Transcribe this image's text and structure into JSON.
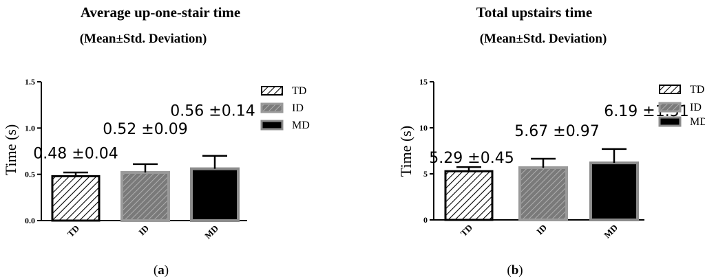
{
  "colors": {
    "axis": "#000000",
    "td_fill": "#ffffff",
    "td_stroke": "#000000",
    "id_fill": "#7a7a7a",
    "id_stroke": "#9a9a9a",
    "md_fill": "#000000",
    "md_stroke": "#8c8c8c"
  },
  "chart_data": [
    {
      "type": "bar",
      "title": "Average up-one-stair time",
      "subtitle": "(Mean±Std. Deviation)",
      "ylabel": "Time (s)",
      "xlabel": "",
      "ylim": [
        0,
        1.5
      ],
      "yticks": [
        "0.0",
        "0.5",
        "1.0",
        "1.5"
      ],
      "categories": [
        "TD",
        "ID",
        "MD"
      ],
      "values": [
        0.48,
        0.52,
        0.56
      ],
      "errors": [
        0.04,
        0.09,
        0.14
      ],
      "data_labels": [
        "0.48 ±0.04",
        "0.52 ±0.09",
        "0.56 ±0.14"
      ],
      "legend": [
        "TD",
        "ID",
        "MD"
      ],
      "legend_position": "top-right",
      "grid": false,
      "panel_label": "a"
    },
    {
      "type": "bar",
      "title": "Total upstairs time",
      "subtitle": "(Mean±Std. Deviation)",
      "ylabel": "Time (s)",
      "xlabel": "",
      "ylim": [
        0,
        15
      ],
      "yticks": [
        "0",
        "5",
        "10",
        "15"
      ],
      "categories": [
        "TD",
        "ID",
        "MD"
      ],
      "values": [
        5.29,
        5.67,
        6.19
      ],
      "errors": [
        0.45,
        0.97,
        1.51
      ],
      "data_labels": [
        "5.29 ±0.45",
        "5.67 ±0.97",
        "6.19 ±1.51"
      ],
      "legend": [
        "TD",
        "ID",
        "MD"
      ],
      "legend_position": "top-right",
      "grid": false,
      "panel_label": "b"
    }
  ]
}
